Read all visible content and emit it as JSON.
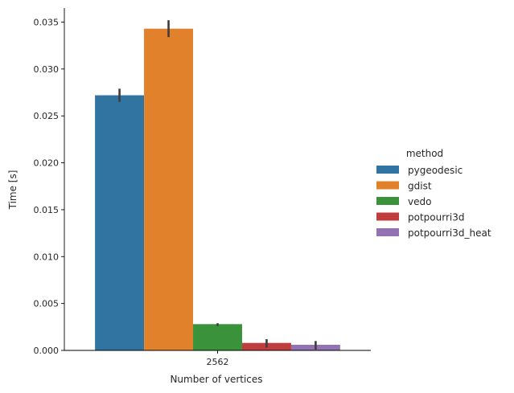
{
  "chart_data": {
    "type": "bar",
    "title": "",
    "xlabel": "Number of vertices",
    "ylabel": "Time [s]",
    "categories": [
      "2562"
    ],
    "ylim": [
      0,
      0.0365
    ],
    "yticks": [
      0.0,
      0.005,
      0.01,
      0.015,
      0.02,
      0.025,
      0.03,
      0.035
    ],
    "ytick_labels": [
      "0.000",
      "0.005",
      "0.010",
      "0.015",
      "0.020",
      "0.025",
      "0.030",
      "0.035"
    ],
    "legend_title": "method",
    "legend_position": "right",
    "series": [
      {
        "name": "pygeodesic",
        "color": "#3274a1",
        "values": [
          0.0272
        ],
        "error": [
          [
            0.0265,
            0.0279
          ]
        ]
      },
      {
        "name": "gdist",
        "color": "#e1812c",
        "values": [
          0.0343
        ],
        "error": [
          [
            0.0334,
            0.0352
          ]
        ]
      },
      {
        "name": "vedo",
        "color": "#3a923a",
        "values": [
          0.0028
        ],
        "error": [
          [
            0.0026,
            0.0029
          ]
        ]
      },
      {
        "name": "potpourri3d",
        "color": "#c03d3e",
        "values": [
          0.0008
        ],
        "error": [
          [
            0.0003,
            0.0012
          ]
        ]
      },
      {
        "name": "potpourri3d_heat",
        "color": "#9372b2",
        "values": [
          0.0006
        ],
        "error": [
          [
            0.0001,
            0.001
          ]
        ]
      }
    ]
  }
}
